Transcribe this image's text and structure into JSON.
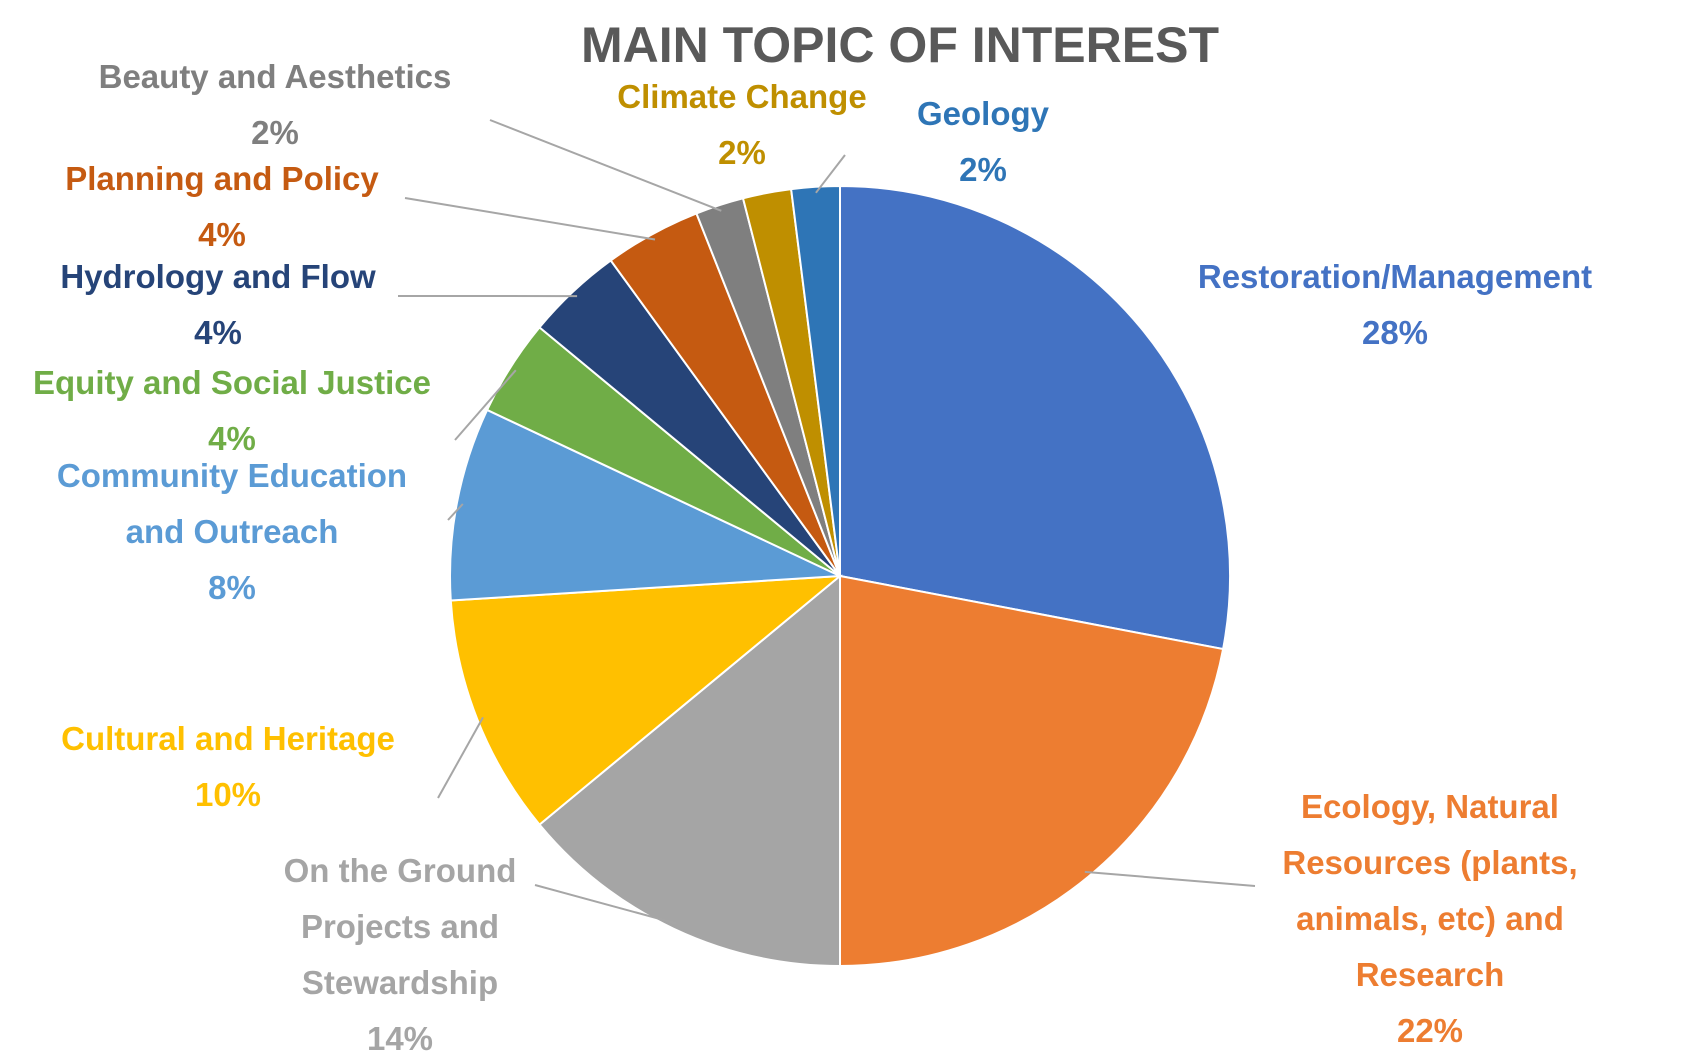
{
  "chart_data": {
    "type": "pie",
    "title": "MAIN TOPIC OF INTEREST",
    "slices": [
      {
        "label_lines": [
          "Restoration/Management"
        ],
        "pct_label": "28%",
        "value": 28,
        "color": "#4472C4"
      },
      {
        "label_lines": [
          "Ecology, Natural",
          "Resources (plants,",
          "animals, etc) and",
          "Research"
        ],
        "pct_label": "22%",
        "value": 22,
        "color": "#ED7D31"
      },
      {
        "label_lines": [
          "On the Ground",
          "Projects and",
          "Stewardship"
        ],
        "pct_label": "14%",
        "value": 14,
        "color": "#A5A5A5"
      },
      {
        "label_lines": [
          "Cultural and Heritage"
        ],
        "pct_label": "10%",
        "value": 10,
        "color": "#FFC000"
      },
      {
        "label_lines": [
          "Community Education",
          "and Outreach"
        ],
        "pct_label": "8%",
        "value": 8,
        "color": "#5B9BD5"
      },
      {
        "label_lines": [
          "Equity and Social Justice"
        ],
        "pct_label": "4%",
        "value": 4,
        "color": "#70AD47"
      },
      {
        "label_lines": [
          "Hydrology and Flow"
        ],
        "pct_label": "4%",
        "value": 4,
        "color": "#264478"
      },
      {
        "label_lines": [
          "Planning and Policy"
        ],
        "pct_label": "4%",
        "value": 4,
        "color": "#C55A11"
      },
      {
        "label_lines": [
          "Beauty and Aesthetics"
        ],
        "pct_label": "2%",
        "value": 2,
        "color": "#7F7F7F"
      },
      {
        "label_lines": [
          "Climate Change"
        ],
        "pct_label": "2%",
        "value": 2,
        "color": "#BF8F00"
      },
      {
        "label_lines": [
          "Geology"
        ],
        "pct_label": "2%",
        "value": 2,
        "color": "#2E75B6"
      }
    ]
  }
}
